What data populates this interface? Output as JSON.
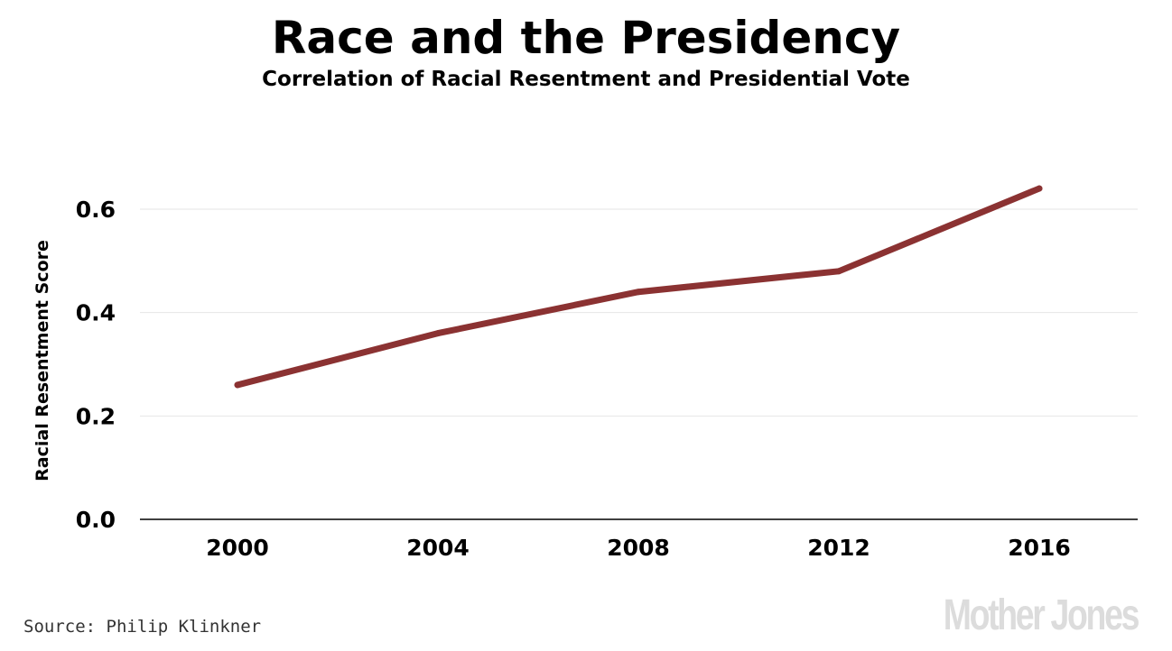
{
  "header": {
    "title": "Race and the Presidency",
    "subtitle": "Correlation of Racial Resentment and Presidential Vote"
  },
  "footer": {
    "source": "Source: Philip Klinkner",
    "logo_text": "Mother Jones"
  },
  "colors": {
    "line": "#8b3232",
    "grid": "#e6e6e6",
    "axis": "#000000",
    "text": "#000000"
  },
  "chart_data": {
    "type": "line",
    "title": "Race and the Presidency",
    "subtitle": "Correlation of Racial Resentment and Presidential Vote",
    "xlabel": "",
    "ylabel": "Racial Resentment Score",
    "x": [
      "2000",
      "2004",
      "2008",
      "2012",
      "2016"
    ],
    "series": [
      {
        "values": [
          0.26,
          0.36,
          0.44,
          0.48,
          0.64
        ]
      }
    ],
    "ylim": [
      0,
      0.6
    ],
    "yticks": [
      "0.0",
      "0.2",
      "0.4",
      "0.6"
    ],
    "grid": true,
    "legend": "none"
  }
}
